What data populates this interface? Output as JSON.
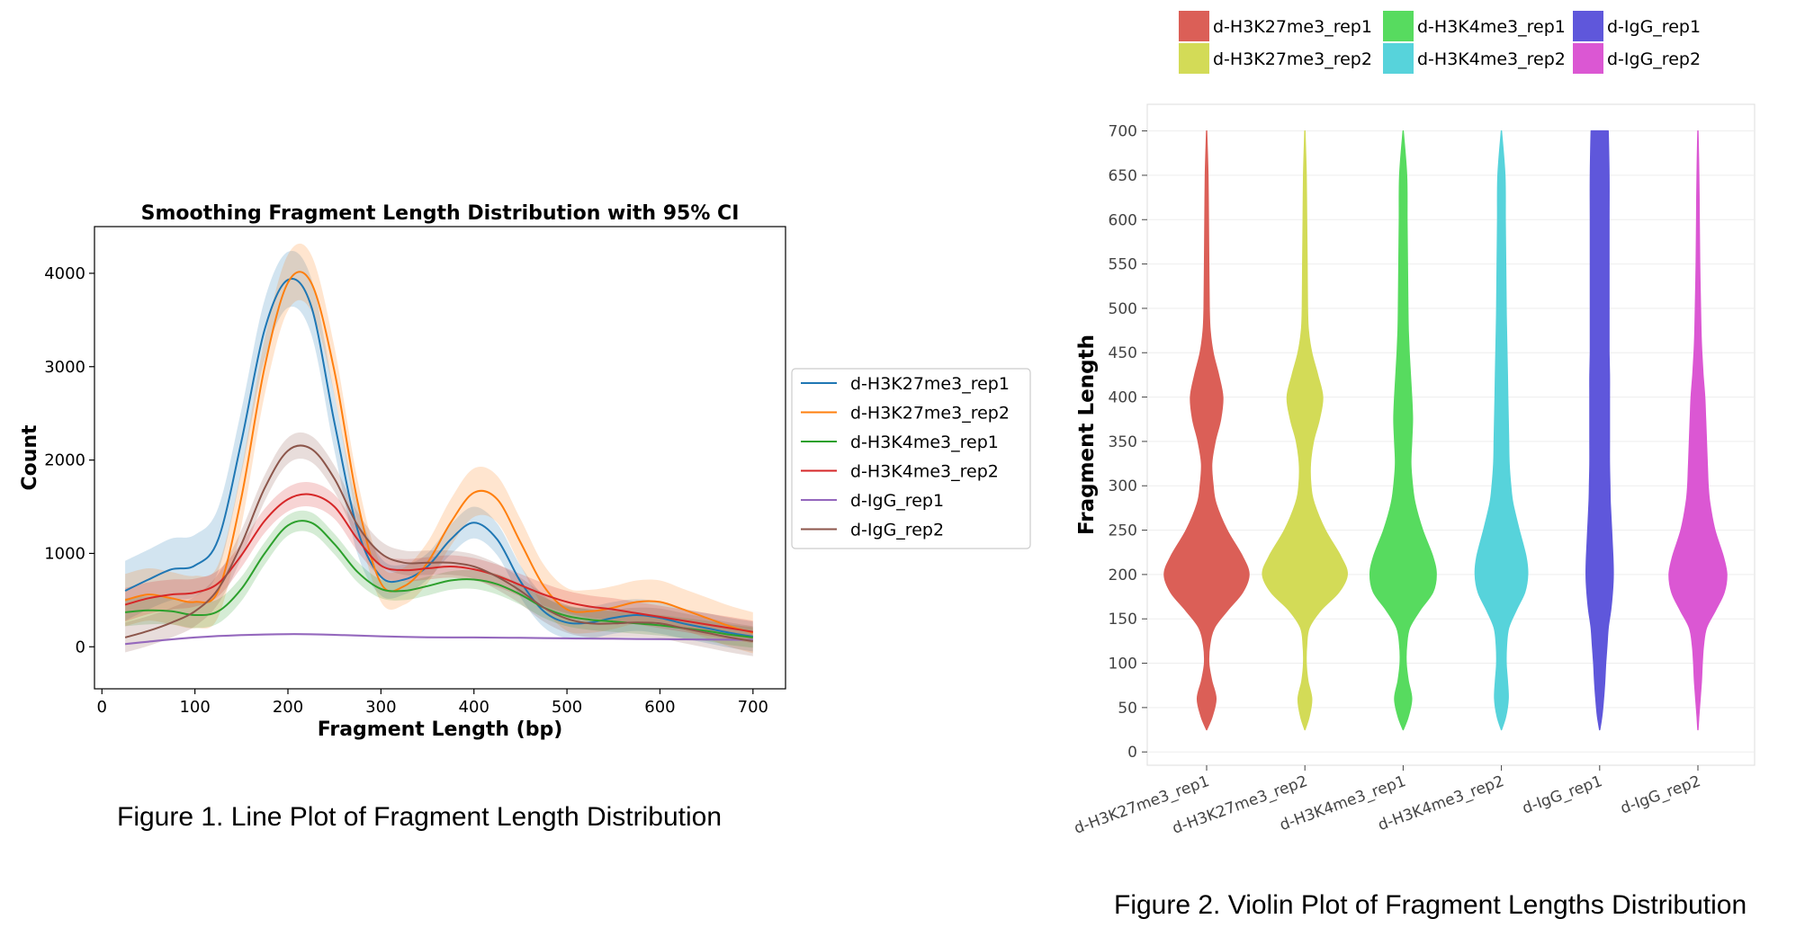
{
  "chart_data": [
    {
      "type": "line",
      "title": "Smoothing Fragment Length Distribution with 95% CI",
      "xlabel": "Fragment Length (bp)",
      "ylabel": "Count",
      "xlim": [
        -8,
        735
      ],
      "ylim": [
        -450,
        4500
      ],
      "xticks": [
        0,
        100,
        200,
        300,
        400,
        500,
        600,
        700
      ],
      "yticks": [
        0,
        1000,
        2000,
        3000,
        4000
      ],
      "legend_position": "right-outside",
      "x": [
        25,
        50,
        75,
        100,
        125,
        150,
        175,
        200,
        225,
        250,
        275,
        300,
        325,
        350,
        375,
        400,
        425,
        450,
        475,
        500,
        525,
        550,
        575,
        600,
        625,
        650,
        675,
        700
      ],
      "series": [
        {
          "name": "d-H3K27me3_rep1",
          "color": "#1f77b4",
          "values": [
            600,
            720,
            830,
            870,
            1150,
            2200,
            3400,
            3930,
            3650,
            2400,
            1250,
            750,
            720,
            860,
            1150,
            1330,
            1150,
            700,
            380,
            260,
            260,
            310,
            340,
            310,
            250,
            200,
            150,
            110
          ],
          "ci": [
            320,
            320,
            330,
            330,
            340,
            340,
            320,
            300,
            300,
            300,
            260,
            200,
            160,
            140,
            160,
            170,
            170,
            170,
            170,
            170,
            170,
            170,
            170,
            170,
            160,
            160,
            160,
            160
          ]
        },
        {
          "name": "d-H3K27me3_rep2",
          "color": "#ff7f0e",
          "values": [
            500,
            560,
            520,
            480,
            600,
            1600,
            3000,
            3900,
            3900,
            2950,
            1550,
            680,
            650,
            900,
            1330,
            1650,
            1580,
            1120,
            650,
            400,
            380,
            420,
            480,
            480,
            400,
            310,
            220,
            150
          ],
          "ci": [
            280,
            280,
            280,
            280,
            280,
            300,
            300,
            300,
            300,
            260,
            230,
            200,
            200,
            220,
            250,
            260,
            250,
            250,
            230,
            230,
            230,
            230,
            230,
            230,
            220,
            220,
            220,
            220
          ]
        },
        {
          "name": "d-H3K4me3_rep1",
          "color": "#2ca02c",
          "values": [
            370,
            390,
            380,
            340,
            380,
            620,
            1000,
            1300,
            1330,
            1100,
            800,
            620,
            600,
            650,
            710,
            720,
            670,
            560,
            420,
            330,
            290,
            270,
            250,
            230,
            200,
            170,
            130,
            100
          ],
          "ci": [
            150,
            150,
            140,
            140,
            130,
            130,
            120,
            110,
            110,
            110,
            110,
            100,
            100,
            100,
            100,
            100,
            110,
            110,
            110,
            110,
            110,
            110,
            110,
            110,
            110,
            110,
            110,
            110
          ]
        },
        {
          "name": "d-H3K4me3_rep2",
          "color": "#d62728",
          "values": [
            450,
            520,
            560,
            580,
            680,
            980,
            1350,
            1580,
            1630,
            1500,
            1150,
            870,
            820,
            840,
            860,
            830,
            760,
            660,
            560,
            480,
            430,
            400,
            360,
            320,
            280,
            240,
            200,
            160
          ],
          "ci": [
            180,
            170,
            160,
            150,
            140,
            130,
            130,
            130,
            130,
            130,
            130,
            120,
            120,
            120,
            120,
            120,
            120,
            120,
            120,
            120,
            120,
            120,
            120,
            120,
            120,
            120,
            120,
            120
          ]
        },
        {
          "name": "d-IgG_rep1",
          "color": "#9467bd",
          "values": [
            30,
            55,
            80,
            100,
            115,
            125,
            132,
            136,
            134,
            128,
            120,
            112,
            106,
            102,
            100,
            100,
            98,
            96,
            93,
            90,
            88,
            86,
            84,
            82,
            80,
            78,
            76,
            74
          ],
          "ci": [
            12,
            12,
            12,
            12,
            12,
            12,
            12,
            12,
            12,
            12,
            12,
            12,
            12,
            12,
            12,
            12,
            12,
            12,
            12,
            12,
            12,
            12,
            12,
            12,
            12,
            12,
            12,
            12
          ]
        },
        {
          "name": "d-IgG_rep2",
          "color": "#8c564b",
          "values": [
            100,
            170,
            260,
            380,
            620,
            1100,
            1700,
            2100,
            2120,
            1800,
            1300,
            1000,
            900,
            900,
            900,
            860,
            750,
            600,
            420,
            300,
            250,
            250,
            260,
            250,
            200,
            150,
            100,
            60
          ],
          "ci": [
            160,
            160,
            160,
            160,
            160,
            150,
            140,
            140,
            140,
            140,
            140,
            130,
            130,
            130,
            130,
            130,
            140,
            140,
            150,
            150,
            150,
            150,
            160,
            160,
            160,
            160,
            160,
            160
          ]
        }
      ]
    },
    {
      "type": "violin",
      "title": "",
      "xlabel": "",
      "ylabel": "Fragment Length",
      "ylim": [
        -15,
        730
      ],
      "yticks": [
        0,
        50,
        100,
        150,
        200,
        250,
        300,
        350,
        400,
        450,
        500,
        550,
        600,
        650,
        700
      ],
      "legend_position": "top",
      "density_y": [
        25,
        40,
        60,
        80,
        100,
        120,
        140,
        160,
        180,
        200,
        220,
        250,
        280,
        300,
        325,
        350,
        375,
        400,
        425,
        450,
        475,
        500,
        550,
        600,
        650,
        700
      ],
      "categories": [
        {
          "name": "d-H3K27me3_rep1",
          "color": "#db5f57",
          "width": [
            0.0,
            0.13,
            0.22,
            0.12,
            0.05,
            0.07,
            0.18,
            0.5,
            0.85,
            1.0,
            0.85,
            0.48,
            0.22,
            0.15,
            0.12,
            0.2,
            0.33,
            0.38,
            0.28,
            0.15,
            0.08,
            0.06,
            0.05,
            0.04,
            0.03,
            0.0
          ]
        },
        {
          "name": "d-H3K27me3_rep2",
          "color": "#d3db57",
          "width": [
            0.0,
            0.1,
            0.16,
            0.07,
            0.03,
            0.04,
            0.1,
            0.38,
            0.8,
            1.0,
            0.85,
            0.48,
            0.22,
            0.14,
            0.13,
            0.2,
            0.34,
            0.42,
            0.3,
            0.16,
            0.08,
            0.06,
            0.05,
            0.04,
            0.03,
            0.0
          ]
        },
        {
          "name": "d-H3K4me3_rep1",
          "color": "#57db5f",
          "width": [
            0.0,
            0.12,
            0.2,
            0.12,
            0.07,
            0.08,
            0.15,
            0.4,
            0.7,
            0.78,
            0.7,
            0.46,
            0.28,
            0.22,
            0.18,
            0.2,
            0.22,
            0.2,
            0.17,
            0.14,
            0.12,
            0.11,
            0.1,
            0.09,
            0.08,
            0.0
          ]
        },
        {
          "name": "d-H3K4me3_rep2",
          "color": "#57d3db",
          "width": [
            0.0,
            0.1,
            0.16,
            0.14,
            0.11,
            0.12,
            0.17,
            0.35,
            0.55,
            0.62,
            0.58,
            0.42,
            0.27,
            0.22,
            0.18,
            0.17,
            0.16,
            0.15,
            0.14,
            0.13,
            0.12,
            0.11,
            0.1,
            0.09,
            0.08,
            0.0
          ]
        },
        {
          "name": "d-IgG_rep1",
          "color": "#5f57db",
          "width": [
            0.0,
            0.05,
            0.09,
            0.12,
            0.14,
            0.17,
            0.2,
            0.26,
            0.3,
            0.32,
            0.31,
            0.28,
            0.25,
            0.24,
            0.23,
            0.23,
            0.23,
            0.23,
            0.23,
            0.22,
            0.22,
            0.22,
            0.22,
            0.22,
            0.22,
            0.2
          ]
        },
        {
          "name": "d-IgG_rep2",
          "color": "#db57d3",
          "width": [
            0.0,
            0.02,
            0.05,
            0.08,
            0.1,
            0.13,
            0.2,
            0.42,
            0.62,
            0.68,
            0.6,
            0.4,
            0.28,
            0.24,
            0.22,
            0.2,
            0.18,
            0.16,
            0.12,
            0.09,
            0.07,
            0.06,
            0.04,
            0.03,
            0.02,
            0.0
          ]
        }
      ]
    }
  ],
  "captions": {
    "figure1": "Figure 1. Line Plot of Fragment Length Distribution",
    "figure2": "Figure 2. Violin Plot of Fragment Lengths Distribution"
  }
}
